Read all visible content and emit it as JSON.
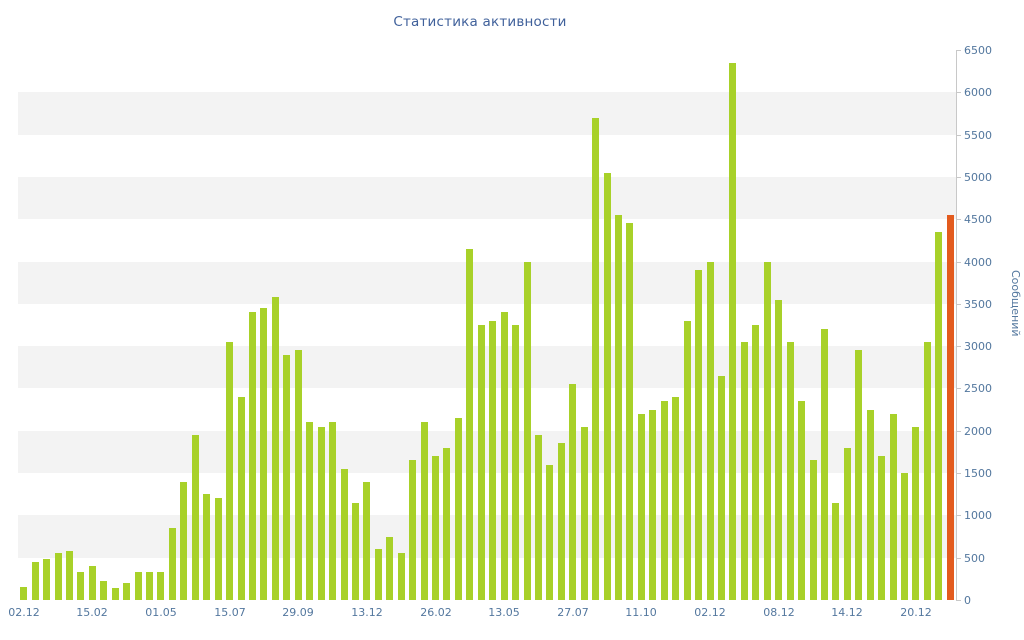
{
  "chart_data": {
    "type": "bar",
    "title": "Статистика активности",
    "ylabel": "Сообщений",
    "xlabel": "",
    "ylim": [
      0,
      6500
    ],
    "y_tick_step": 500,
    "x_tick_interval": 6,
    "x_tick_labels": [
      "02.12",
      "15.02",
      "01.05",
      "15.07",
      "29.09",
      "13.12",
      "26.02",
      "13.05",
      "27.07",
      "11.10",
      "02.12",
      "08.12",
      "14.12",
      "20.12"
    ],
    "values": [
      150,
      450,
      480,
      560,
      580,
      330,
      400,
      230,
      140,
      200,
      330,
      330,
      330,
      850,
      1400,
      1950,
      1250,
      1200,
      3050,
      2400,
      3400,
      3450,
      3580,
      2900,
      2950,
      2100,
      2050,
      2100,
      1550,
      1150,
      1400,
      600,
      750,
      550,
      1650,
      2100,
      1700,
      1800,
      2150,
      4150,
      3250,
      3300,
      3400,
      3250,
      4000,
      1950,
      1600,
      1850,
      2550,
      2050,
      5700,
      5050,
      4550,
      4450,
      2200,
      2250,
      2350,
      2400,
      3300,
      3900,
      4000,
      2650,
      6350,
      3050,
      3250,
      4000,
      3550,
      3050,
      2350,
      1650,
      3200,
      1150,
      1800,
      2950,
      2250,
      1700,
      2200,
      1500,
      2050,
      3050,
      4350,
      4550
    ],
    "highlight_index": 81,
    "legend": null,
    "grid": "alternating horizontal bands every 500, axis on right side",
    "colors": {
      "bar": "#a8d129",
      "highlight_bar": "#e35b1e",
      "band": "#f3f3f3",
      "axis_line": "#c8c8c8",
      "title_text": "#40619b",
      "tick_text": "#53779e"
    }
  }
}
